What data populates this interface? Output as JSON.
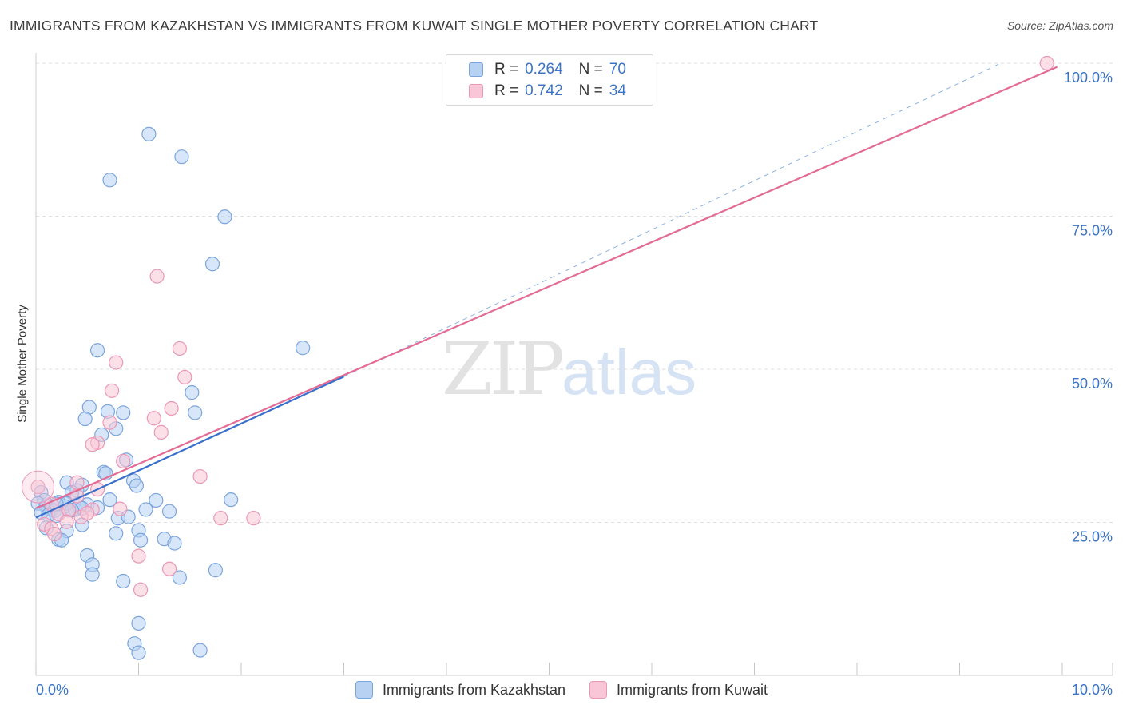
{
  "title": "IMMIGRANTS FROM KAZAKHSTAN VS IMMIGRANTS FROM KUWAIT SINGLE MOTHER POVERTY CORRELATION CHART",
  "source": "Source: ZipAtlas.com",
  "watermark": {
    "zip": "ZIP",
    "atlas": "atlas"
  },
  "legend": {
    "r_label": "R = ",
    "n_label": "N = ",
    "rows": [
      {
        "r": "0.264",
        "n": "70",
        "color": "#a9c8f2"
      },
      {
        "r": "0.742",
        "n": "34",
        "color": "#f7bcd0"
      }
    ]
  },
  "colors": {
    "blue_fill": "#b7d1f3",
    "blue_stroke": "#7ba5de",
    "blue_line": "#3a70cc",
    "pink_fill": "#f8c6d6",
    "pink_stroke": "#eb98b6",
    "pink_line": "#e46b94",
    "tick_label": "#3b74c4",
    "grid": "#dddddd"
  },
  "chart_data": {
    "type": "scatter",
    "title": "IMMIGRANTS FROM KAZAKHSTAN VS IMMIGRANTS FROM KUWAIT SINGLE MOTHER POVERTY CORRELATION CHART",
    "xlabel": "",
    "ylabel": "Single Mother Poverty",
    "xlim": [
      0,
      10
    ],
    "ylim": [
      0,
      100
    ],
    "x_tick_labels": [
      "0.0%",
      "10.0%"
    ],
    "y_tick_labels": [
      "25.0%",
      "50.0%",
      "75.0%",
      "100.0%"
    ],
    "y_ticks": [
      25,
      50,
      75,
      100
    ],
    "grid": true,
    "legend_position": "top-center",
    "series": [
      {
        "name": "Immigrants from Kazakhstan",
        "R": 0.264,
        "N": 70,
        "trend": {
          "x0": 0.0,
          "y0": 25.8,
          "x1": 3.0,
          "y1": 48.8,
          "dashed_to": [
            9.4,
            100
          ]
        },
        "points": [
          [
            1.1,
            88.4
          ],
          [
            1.42,
            84.7
          ],
          [
            0.72,
            80.9
          ],
          [
            1.84,
            74.9
          ],
          [
            1.72,
            67.2
          ],
          [
            2.6,
            53.5
          ],
          [
            0.6,
            53.1
          ],
          [
            1.52,
            46.2
          ],
          [
            0.52,
            43.8
          ],
          [
            0.85,
            42.9
          ],
          [
            0.7,
            43.1
          ],
          [
            1.55,
            42.9
          ],
          [
            0.48,
            41.9
          ],
          [
            0.78,
            40.3
          ],
          [
            0.64,
            39.3
          ],
          [
            0.88,
            35.2
          ],
          [
            0.66,
            33.2
          ],
          [
            0.68,
            33.0
          ],
          [
            0.3,
            31.5
          ],
          [
            0.45,
            31.1
          ],
          [
            0.95,
            31.8
          ],
          [
            0.98,
            31.0
          ],
          [
            0.4,
            30.2
          ],
          [
            0.35,
            29.9
          ],
          [
            0.05,
            29.9
          ],
          [
            0.08,
            28.6
          ],
          [
            0.22,
            28.3
          ],
          [
            0.3,
            28.1
          ],
          [
            0.5,
            27.9
          ],
          [
            0.72,
            28.7
          ],
          [
            1.17,
            28.6
          ],
          [
            1.9,
            28.7
          ],
          [
            0.02,
            28.1
          ],
          [
            0.1,
            27.6
          ],
          [
            0.15,
            27.1
          ],
          [
            0.18,
            26.9
          ],
          [
            0.28,
            27.6
          ],
          [
            0.38,
            27.1
          ],
          [
            0.42,
            27.6
          ],
          [
            0.45,
            27.3
          ],
          [
            1.07,
            27.1
          ],
          [
            1.3,
            26.8
          ],
          [
            0.05,
            26.6
          ],
          [
            0.12,
            26.2
          ],
          [
            0.2,
            26.1
          ],
          [
            0.8,
            25.7
          ],
          [
            0.9,
            25.9
          ],
          [
            0.1,
            24.1
          ],
          [
            0.45,
            24.6
          ],
          [
            0.3,
            23.6
          ],
          [
            0.78,
            23.2
          ],
          [
            1.0,
            23.7
          ],
          [
            1.25,
            22.3
          ],
          [
            0.22,
            22.2
          ],
          [
            0.25,
            22.1
          ],
          [
            1.02,
            22.1
          ],
          [
            1.35,
            21.6
          ],
          [
            0.5,
            19.6
          ],
          [
            0.55,
            18.1
          ],
          [
            0.55,
            16.5
          ],
          [
            1.4,
            16.0
          ],
          [
            1.75,
            17.2
          ],
          [
            0.85,
            15.4
          ],
          [
            1.0,
            8.5
          ],
          [
            0.96,
            5.2
          ],
          [
            1.0,
            3.7
          ],
          [
            1.6,
            4.1
          ],
          [
            0.35,
            27.0
          ],
          [
            0.6,
            27.4
          ],
          [
            0.2,
            28.0
          ]
        ]
      },
      {
        "name": "Immigrants from Kuwait",
        "R": 0.742,
        "N": 34,
        "trend": {
          "x0": 0.0,
          "y0": 27.3,
          "x1": 9.95,
          "y1": 99.4
        },
        "points": [
          [
            9.85,
            100.0
          ],
          [
            1.18,
            65.2
          ],
          [
            1.4,
            53.4
          ],
          [
            0.78,
            51.1
          ],
          [
            1.45,
            48.7
          ],
          [
            0.74,
            46.5
          ],
          [
            1.32,
            43.6
          ],
          [
            1.15,
            42.0
          ],
          [
            0.72,
            41.3
          ],
          [
            1.22,
            39.7
          ],
          [
            0.6,
            38.0
          ],
          [
            0.55,
            37.7
          ],
          [
            0.85,
            35.0
          ],
          [
            1.6,
            32.5
          ],
          [
            0.4,
            31.5
          ],
          [
            0.6,
            30.4
          ],
          [
            0.4,
            29.3
          ],
          [
            0.02,
            30.8
          ],
          [
            0.15,
            28.0
          ],
          [
            0.55,
            27.1
          ],
          [
            0.82,
            27.2
          ],
          [
            0.22,
            26.4
          ],
          [
            0.32,
            27.0
          ],
          [
            0.44,
            25.9
          ],
          [
            1.8,
            25.7
          ],
          [
            2.12,
            25.7
          ],
          [
            0.08,
            24.7
          ],
          [
            0.15,
            24.0
          ],
          [
            0.18,
            23.1
          ],
          [
            1.0,
            19.5
          ],
          [
            1.3,
            17.4
          ],
          [
            1.02,
            14.0
          ],
          [
            0.3,
            25.1
          ],
          [
            0.5,
            26.5
          ]
        ]
      }
    ]
  }
}
